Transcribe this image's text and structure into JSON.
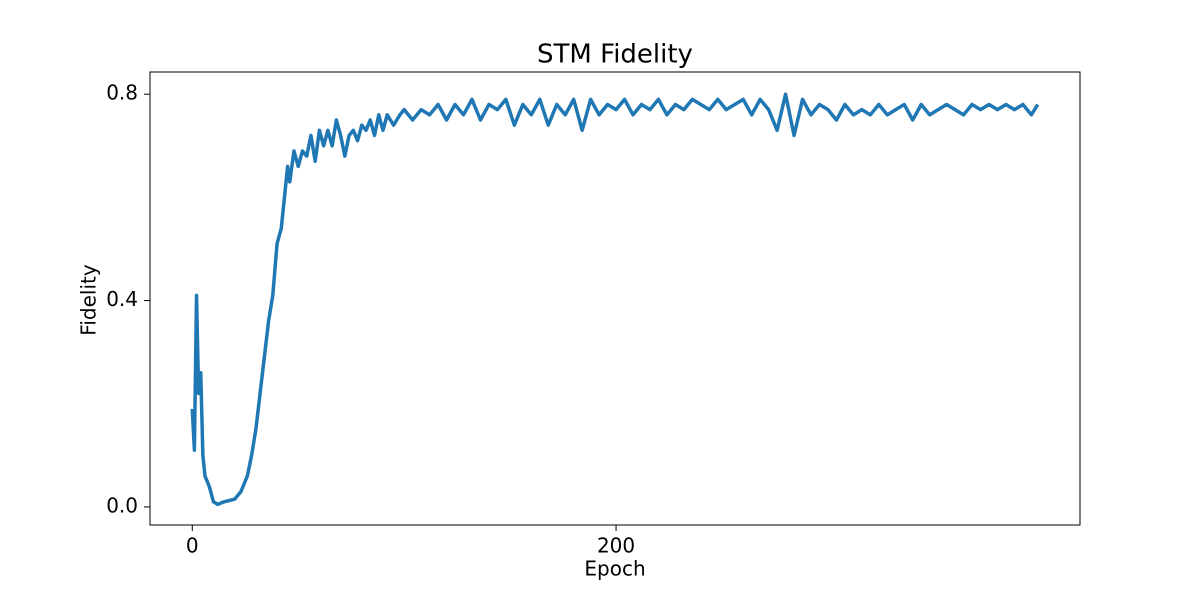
{
  "chart_data": {
    "type": "line",
    "title": "STM Fidelity",
    "xlabel": "Epoch",
    "ylabel": "Fidelity",
    "x": [
      0,
      1,
      2,
      3,
      4,
      5,
      6,
      8,
      10,
      12,
      15,
      20,
      23,
      26,
      28,
      30,
      32,
      34,
      36,
      38,
      40,
      42,
      44,
      45,
      46,
      48,
      50,
      52,
      54,
      56,
      58,
      60,
      62,
      64,
      66,
      68,
      70,
      72,
      74,
      76,
      78,
      80,
      82,
      84,
      86,
      88,
      90,
      92,
      95,
      98,
      100,
      104,
      108,
      112,
      116,
      120,
      124,
      128,
      132,
      136,
      140,
      144,
      148,
      152,
      156,
      160,
      164,
      168,
      172,
      176,
      180,
      184,
      188,
      192,
      196,
      200,
      204,
      208,
      212,
      216,
      220,
      224,
      228,
      232,
      236,
      240,
      244,
      248,
      252,
      256,
      260,
      264,
      268,
      272,
      276,
      280,
      284,
      288,
      292,
      296,
      300,
      304,
      308,
      312,
      316,
      320,
      324,
      328,
      332,
      336,
      340,
      344,
      348,
      352,
      356,
      360,
      364,
      368,
      372,
      376,
      380,
      384,
      388,
      392,
      396,
      399
    ],
    "series": [
      {
        "name": "Fidelity",
        "color": "#1f77b4",
        "values": [
          0.19,
          0.11,
          0.41,
          0.22,
          0.26,
          0.1,
          0.06,
          0.04,
          0.01,
          0.005,
          0.01,
          0.015,
          0.03,
          0.06,
          0.1,
          0.15,
          0.22,
          0.29,
          0.36,
          0.41,
          0.51,
          0.54,
          0.62,
          0.66,
          0.63,
          0.69,
          0.66,
          0.69,
          0.68,
          0.72,
          0.67,
          0.73,
          0.7,
          0.73,
          0.7,
          0.75,
          0.72,
          0.68,
          0.72,
          0.73,
          0.71,
          0.74,
          0.73,
          0.75,
          0.72,
          0.76,
          0.73,
          0.76,
          0.74,
          0.76,
          0.77,
          0.75,
          0.77,
          0.76,
          0.78,
          0.75,
          0.78,
          0.76,
          0.79,
          0.75,
          0.78,
          0.77,
          0.79,
          0.74,
          0.78,
          0.76,
          0.79,
          0.74,
          0.78,
          0.76,
          0.79,
          0.73,
          0.79,
          0.76,
          0.78,
          0.77,
          0.79,
          0.76,
          0.78,
          0.77,
          0.79,
          0.76,
          0.78,
          0.77,
          0.79,
          0.78,
          0.77,
          0.79,
          0.77,
          0.78,
          0.79,
          0.76,
          0.79,
          0.77,
          0.73,
          0.8,
          0.72,
          0.79,
          0.76,
          0.78,
          0.77,
          0.75,
          0.78,
          0.76,
          0.77,
          0.76,
          0.78,
          0.76,
          0.77,
          0.78,
          0.75,
          0.78,
          0.76,
          0.77,
          0.78,
          0.77,
          0.76,
          0.78,
          0.77,
          0.78,
          0.77,
          0.78,
          0.77,
          0.78,
          0.76,
          0.78
        ]
      }
    ],
    "xlim": [
      -19.95,
      418.95
    ],
    "xticks": [
      0,
      200
    ],
    "ylim": [
      -0.035,
      0.843
    ],
    "yticks": [
      {
        "value": 0,
        "label": "0.0"
      },
      0.4,
      0.8
    ]
  }
}
